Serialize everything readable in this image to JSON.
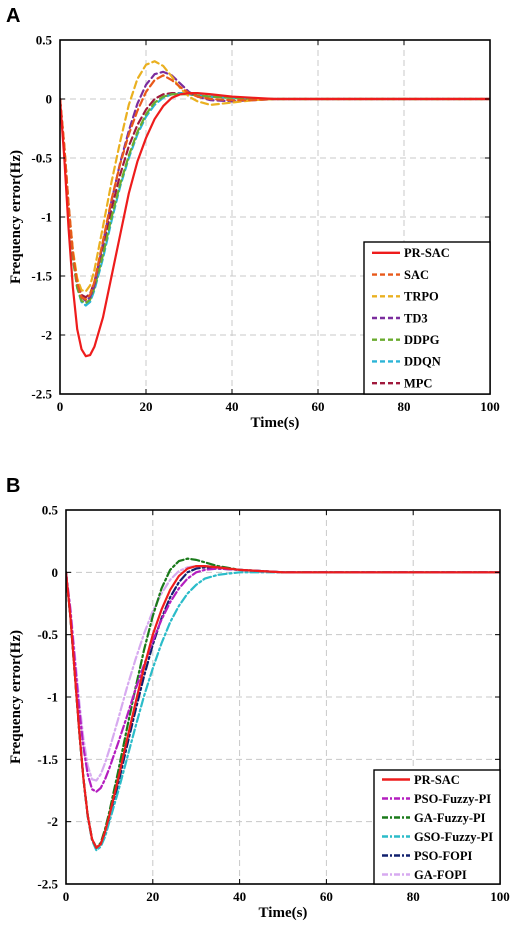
{
  "chart_data": [
    {
      "panel": "A",
      "type": "line",
      "xlabel": "Time(s)",
      "ylabel": "Frequency error(Hz)",
      "xlim": [
        0,
        100
      ],
      "ylim": [
        -2.5,
        0.5
      ],
      "xticks": [
        0,
        20,
        40,
        60,
        80,
        100
      ],
      "yticks": [
        0.5,
        0,
        -0.5,
        -1,
        -1.5,
        -2,
        -2.5
      ],
      "xtick_labels": [
        "0",
        "20",
        "40",
        "60",
        "80",
        "100"
      ],
      "ytick_labels": [
        "0.5",
        "0",
        "-0.5",
        "-1",
        "-1.5",
        "-2",
        "-2.5"
      ],
      "grid": true,
      "legend_position": "bottom-right",
      "series": [
        {
          "name": "PR-SAC",
          "color": "#ee1c1c",
          "style": "solid",
          "x": [
            0,
            1,
            2,
            3,
            4,
            5,
            6,
            7,
            8,
            10,
            12,
            14,
            16,
            18,
            20,
            22,
            24,
            26,
            28,
            30,
            32,
            35,
            40,
            45,
            50,
            60,
            100
          ],
          "y": [
            0,
            -0.5,
            -1.1,
            -1.6,
            -1.95,
            -2.12,
            -2.18,
            -2.17,
            -2.1,
            -1.85,
            -1.5,
            -1.15,
            -0.8,
            -0.53,
            -0.33,
            -0.17,
            -0.06,
            0.01,
            0.04,
            0.05,
            0.05,
            0.04,
            0.02,
            0.01,
            0,
            0,
            0
          ]
        },
        {
          "name": "SAC",
          "color": "#e8591a",
          "style": "dashed",
          "x": [
            0,
            1,
            2,
            3,
            4,
            5,
            6,
            7,
            8,
            10,
            12,
            14,
            16,
            18,
            20,
            22,
            24,
            26,
            28,
            30,
            32,
            35,
            40,
            45,
            50,
            60,
            100
          ],
          "y": [
            0,
            -0.4,
            -0.9,
            -1.3,
            -1.56,
            -1.68,
            -1.7,
            -1.66,
            -1.55,
            -1.2,
            -0.85,
            -0.55,
            -0.3,
            -0.1,
            0.06,
            0.16,
            0.2,
            0.16,
            0.1,
            0.05,
            0.02,
            0,
            -0.01,
            -0.01,
            0,
            0,
            0
          ]
        },
        {
          "name": "TRPO",
          "color": "#eab020",
          "style": "dashed",
          "x": [
            0,
            1,
            2,
            3,
            4,
            5,
            6,
            7,
            8,
            10,
            12,
            14,
            16,
            18,
            20,
            22,
            24,
            26,
            28,
            30,
            32,
            35,
            40,
            45,
            50,
            60,
            100
          ],
          "y": [
            0,
            -0.4,
            -0.9,
            -1.28,
            -1.52,
            -1.62,
            -1.63,
            -1.58,
            -1.45,
            -1.08,
            -0.7,
            -0.36,
            -0.05,
            0.17,
            0.29,
            0.32,
            0.28,
            0.19,
            0.09,
            0.02,
            -0.02,
            -0.05,
            -0.03,
            -0.01,
            0,
            0,
            0
          ]
        },
        {
          "name": "TD3",
          "color": "#7b2d9e",
          "style": "dashed",
          "x": [
            0,
            1,
            2,
            3,
            4,
            5,
            6,
            7,
            8,
            10,
            12,
            14,
            16,
            18,
            20,
            22,
            24,
            26,
            28,
            30,
            32,
            35,
            40,
            45,
            50,
            60,
            100
          ],
          "y": [
            0,
            -0.4,
            -0.9,
            -1.3,
            -1.56,
            -1.68,
            -1.71,
            -1.68,
            -1.58,
            -1.22,
            -0.86,
            -0.54,
            -0.27,
            -0.04,
            0.12,
            0.21,
            0.23,
            0.2,
            0.13,
            0.06,
            0.02,
            -0.01,
            -0.02,
            -0.01,
            0,
            0,
            0
          ]
        },
        {
          "name": "DDPG",
          "color": "#6aab2e",
          "style": "dashed",
          "x": [
            0,
            1,
            2,
            3,
            4,
            5,
            6,
            7,
            8,
            10,
            12,
            14,
            16,
            18,
            20,
            22,
            24,
            26,
            28,
            30,
            32,
            35,
            40,
            45,
            50,
            60,
            100
          ],
          "y": [
            0,
            -0.45,
            -0.95,
            -1.35,
            -1.6,
            -1.71,
            -1.73,
            -1.7,
            -1.6,
            -1.32,
            -1.0,
            -0.72,
            -0.48,
            -0.28,
            -0.13,
            -0.03,
            0.02,
            0.04,
            0.04,
            0.04,
            0.03,
            0.02,
            0.01,
            0,
            0,
            0,
            0
          ]
        },
        {
          "name": "DDQN",
          "color": "#2bb4d6",
          "style": "dashed",
          "x": [
            0,
            1,
            2,
            3,
            4,
            5,
            6,
            7,
            8,
            10,
            12,
            14,
            16,
            18,
            20,
            22,
            24,
            26,
            28,
            30,
            32,
            35,
            40,
            45,
            50,
            60,
            100
          ],
          "y": [
            0,
            -0.45,
            -0.95,
            -1.35,
            -1.6,
            -1.72,
            -1.75,
            -1.72,
            -1.62,
            -1.35,
            -1.03,
            -0.74,
            -0.5,
            -0.3,
            -0.15,
            -0.05,
            0.01,
            0.04,
            0.05,
            0.04,
            0.03,
            0.02,
            0.01,
            0,
            0,
            0,
            0
          ]
        },
        {
          "name": "MPC",
          "color": "#a0193c",
          "style": "dashed",
          "x": [
            0,
            1,
            2,
            3,
            4,
            5,
            6,
            7,
            8,
            10,
            12,
            14,
            16,
            18,
            20,
            22,
            24,
            26,
            28,
            30,
            32,
            35,
            40,
            45,
            50,
            60,
            100
          ],
          "y": [
            0,
            -0.42,
            -0.92,
            -1.3,
            -1.55,
            -1.66,
            -1.68,
            -1.65,
            -1.55,
            -1.25,
            -0.93,
            -0.64,
            -0.4,
            -0.22,
            -0.09,
            0.0,
            0.04,
            0.05,
            0.05,
            0.04,
            0.03,
            0.02,
            0.01,
            0,
            0,
            0,
            0
          ]
        }
      ]
    },
    {
      "panel": "B",
      "type": "line",
      "xlabel": "Time(s)",
      "ylabel": "Frequency error(Hz)",
      "xlim": [
        0,
        100
      ],
      "ylim": [
        -2.5,
        0.5
      ],
      "xticks": [
        0,
        20,
        40,
        60,
        80,
        100
      ],
      "yticks": [
        0.5,
        0,
        -0.5,
        -1,
        -1.5,
        -2,
        -2.5
      ],
      "xtick_labels": [
        "0",
        "20",
        "40",
        "60",
        "80",
        "100"
      ],
      "ytick_labels": [
        "0.5",
        "0",
        "-0.5",
        "-1",
        "-1.5",
        "-2",
        "-2.5"
      ],
      "grid": true,
      "legend_position": "bottom-right",
      "series": [
        {
          "name": "PR-SAC",
          "color": "#ee1c1c",
          "style": "solid",
          "x": [
            0,
            1,
            2,
            3,
            4,
            5,
            6,
            7,
            8,
            9,
            10,
            12,
            14,
            16,
            18,
            20,
            22,
            24,
            26,
            28,
            30,
            32,
            35,
            40,
            45,
            50,
            60,
            100
          ],
          "y": [
            0,
            -0.35,
            -0.8,
            -1.25,
            -1.65,
            -1.95,
            -2.14,
            -2.21,
            -2.18,
            -2.08,
            -1.95,
            -1.66,
            -1.35,
            -1.05,
            -0.76,
            -0.5,
            -0.3,
            -0.14,
            -0.03,
            0.03,
            0.05,
            0.05,
            0.04,
            0.02,
            0.01,
            0,
            0,
            0
          ]
        },
        {
          "name": "PSO-Fuzzy-PI",
          "color": "#b41ebf",
          "style": "dashdot",
          "x": [
            0,
            1,
            2,
            3,
            4,
            5,
            6,
            7,
            8,
            9,
            10,
            12,
            14,
            16,
            18,
            20,
            22,
            24,
            26,
            28,
            30,
            32,
            35,
            40,
            45,
            50,
            60,
            100
          ],
          "y": [
            0,
            -0.3,
            -0.7,
            -1.08,
            -1.4,
            -1.62,
            -1.74,
            -1.76,
            -1.73,
            -1.66,
            -1.57,
            -1.37,
            -1.16,
            -0.94,
            -0.74,
            -0.55,
            -0.38,
            -0.24,
            -0.13,
            -0.05,
            0.0,
            0.02,
            0.03,
            0.02,
            0.01,
            0,
            0,
            0
          ]
        },
        {
          "name": "GA-Fuzzy-PI",
          "color": "#1a7a1a",
          "style": "dashdot",
          "x": [
            0,
            1,
            2,
            3,
            4,
            5,
            6,
            7,
            8,
            9,
            10,
            12,
            14,
            16,
            18,
            20,
            22,
            24,
            26,
            28,
            30,
            32,
            35,
            40,
            45,
            50,
            60,
            100
          ],
          "y": [
            0,
            -0.35,
            -0.8,
            -1.25,
            -1.65,
            -1.95,
            -2.14,
            -2.21,
            -2.17,
            -2.06,
            -1.92,
            -1.6,
            -1.26,
            -0.93,
            -0.62,
            -0.35,
            -0.13,
            0.02,
            0.09,
            0.11,
            0.1,
            0.08,
            0.05,
            0.02,
            0.01,
            0,
            0,
            0
          ]
        },
        {
          "name": "GSO-Fuzzy-PI",
          "color": "#2bbcc9",
          "style": "dashdot",
          "x": [
            0,
            1,
            2,
            3,
            4,
            5,
            6,
            7,
            8,
            9,
            10,
            12,
            14,
            16,
            18,
            20,
            22,
            24,
            26,
            28,
            30,
            32,
            35,
            40,
            45,
            50,
            60,
            100
          ],
          "y": [
            0,
            -0.35,
            -0.8,
            -1.25,
            -1.65,
            -1.96,
            -2.15,
            -2.23,
            -2.2,
            -2.12,
            -2.0,
            -1.76,
            -1.5,
            -1.24,
            -0.99,
            -0.77,
            -0.57,
            -0.4,
            -0.27,
            -0.17,
            -0.1,
            -0.05,
            -0.02,
            0,
            0,
            0,
            0,
            0
          ]
        },
        {
          "name": "PSO-FOPI",
          "color": "#10206e",
          "style": "dashdot",
          "x": [
            0,
            1,
            2,
            3,
            4,
            5,
            6,
            7,
            8,
            9,
            10,
            12,
            14,
            16,
            18,
            20,
            22,
            24,
            26,
            28,
            30,
            32,
            35,
            40,
            45,
            50,
            60,
            100
          ],
          "y": [
            0,
            -0.35,
            -0.8,
            -1.25,
            -1.65,
            -1.95,
            -2.14,
            -2.21,
            -2.18,
            -2.09,
            -1.97,
            -1.7,
            -1.4,
            -1.11,
            -0.83,
            -0.58,
            -0.37,
            -0.2,
            -0.08,
            0.0,
            0.03,
            0.04,
            0.03,
            0.02,
            0.01,
            0,
            0,
            0
          ]
        },
        {
          "name": "GA-FOPI",
          "color": "#d7aaf0",
          "style": "dashdot",
          "x": [
            0,
            1,
            2,
            3,
            4,
            5,
            6,
            7,
            8,
            9,
            10,
            12,
            14,
            16,
            18,
            20,
            22,
            24,
            26,
            28,
            30,
            32,
            35,
            40,
            45,
            50,
            60,
            100
          ],
          "y": [
            0,
            -0.28,
            -0.65,
            -1.02,
            -1.33,
            -1.55,
            -1.66,
            -1.67,
            -1.62,
            -1.53,
            -1.42,
            -1.18,
            -0.93,
            -0.7,
            -0.49,
            -0.31,
            -0.17,
            -0.06,
            0.01,
            0.04,
            0.05,
            0.05,
            0.04,
            0.02,
            0.01,
            0,
            0,
            0
          ]
        }
      ]
    }
  ]
}
